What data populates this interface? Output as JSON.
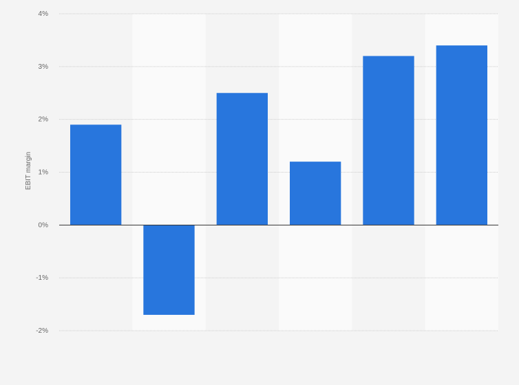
{
  "chart_data": {
    "type": "bar",
    "title": "",
    "xlabel": "",
    "ylabel": "EBIT margin",
    "categories": [
      "",
      "",
      "",
      "",
      "",
      ""
    ],
    "values": [
      1.9,
      -1.7,
      2.5,
      1.2,
      3.2,
      3.4
    ],
    "unit": "%",
    "ylim": [
      -2,
      4
    ],
    "yticks": [
      4,
      3,
      2,
      1,
      0,
      -1,
      -2
    ],
    "ytick_labels": [
      "4%",
      "3%",
      "2%",
      "1%",
      "0%",
      "-1%",
      "-2%"
    ],
    "grid": true,
    "bar_color": "#2876dd",
    "alternating_column_color": "#fafafa",
    "background_color": "#f4f4f4"
  }
}
